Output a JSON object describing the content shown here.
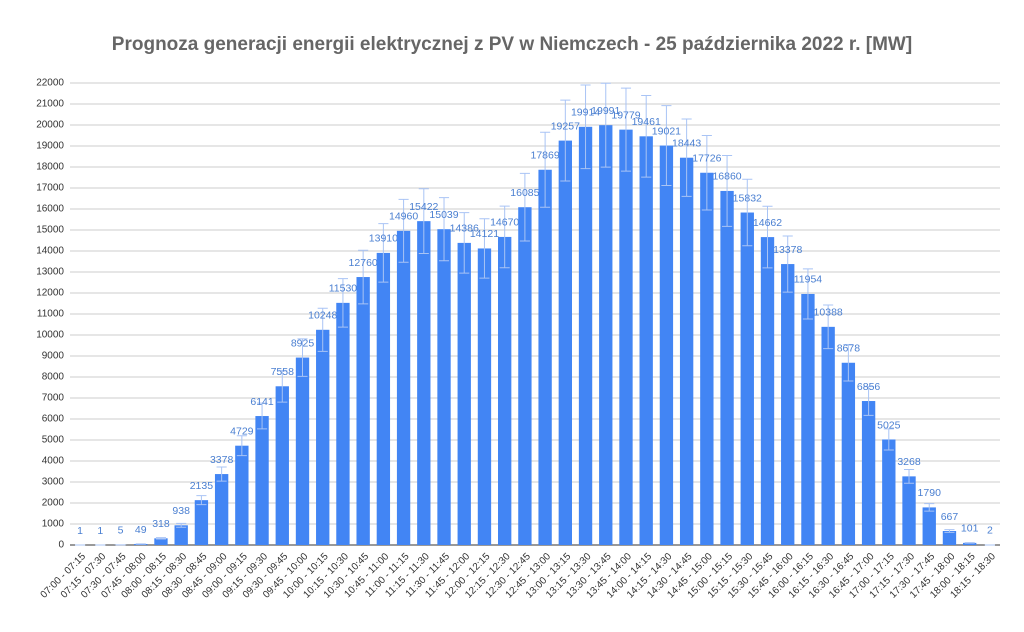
{
  "chart_data": {
    "type": "bar",
    "title": "Prognoza generacji energii elektrycznej z PV w Niemczech - 25 października 2022 r. [MW]",
    "categories": [
      "07:00 - 07:15",
      "07:15 - 07:30",
      "07:30 - 07:45",
      "07:45 - 08:00",
      "08:00 - 08:15",
      "08:15 - 08:30",
      "08:30 - 08:45",
      "08:45 - 09:00",
      "09:00 - 09:15",
      "09:15 - 09:30",
      "09:30 - 09:45",
      "09:45 - 10:00",
      "10:00 - 10:15",
      "10:15 - 10:30",
      "10:30 - 10:45",
      "10:45 - 11:00",
      "11:00 - 11:15",
      "11:15 - 11:30",
      "11:30 - 11:45",
      "11:45 - 12:00",
      "12:00 - 12:15",
      "12:15 - 12:30",
      "12:30 - 12:45",
      "12:45 - 13:00",
      "13:00 - 13:15",
      "13:15 - 13:30",
      "13:30 - 13:45",
      "13:45 - 14:00",
      "14:00 - 14:15",
      "14:15 - 14:30",
      "14:30 - 14:45",
      "14:45 - 15:00",
      "15:00 - 15:15",
      "15:15 - 15:30",
      "15:30 - 15:45",
      "15:45 - 16:00",
      "16:00 - 16:15",
      "16:15 - 16:30",
      "16:30 - 16:45",
      "16:45 - 17:00",
      "17:00 - 17:15",
      "17:15 - 17:30",
      "17:30 - 17:45",
      "17:45 - 18:00",
      "18:00 - 18:15",
      "18:15 - 18:30"
    ],
    "values": [
      1,
      1,
      5,
      49,
      318,
      938,
      2135,
      3378,
      4729,
      6141,
      7558,
      8925,
      10248,
      11530,
      12760,
      13910,
      14960,
      15422,
      15039,
      14386,
      14121,
      14670,
      16085,
      17869,
      19257,
      19914,
      19991,
      19779,
      19461,
      19021,
      18443,
      17726,
      16860,
      15832,
      14662,
      13378,
      11954,
      10388,
      8678,
      6856,
      5025,
      3268,
      1790,
      667,
      101,
      2
    ],
    "errors": [
      0,
      0,
      1,
      5,
      32,
      94,
      214,
      338,
      473,
      614,
      756,
      893,
      1025,
      1153,
      1276,
      1391,
      1496,
      1542,
      1504,
      1439,
      1412,
      1467,
      1609,
      1787,
      1926,
      1991,
      1999,
      1978,
      1946,
      1902,
      1844,
      1773,
      1686,
      1583,
      1466,
      1338,
      1195,
      1039,
      868,
      686,
      503,
      327,
      179,
      67,
      10,
      0
    ],
    "color": "#4285f4",
    "ylim": [
      0,
      22000
    ],
    "yticks": [
      0,
      1000,
      2000,
      3000,
      4000,
      5000,
      6000,
      7000,
      8000,
      9000,
      10000,
      11000,
      12000,
      13000,
      14000,
      15000,
      16000,
      17000,
      18000,
      19000,
      20000,
      21000,
      22000
    ],
    "grid": true
  }
}
